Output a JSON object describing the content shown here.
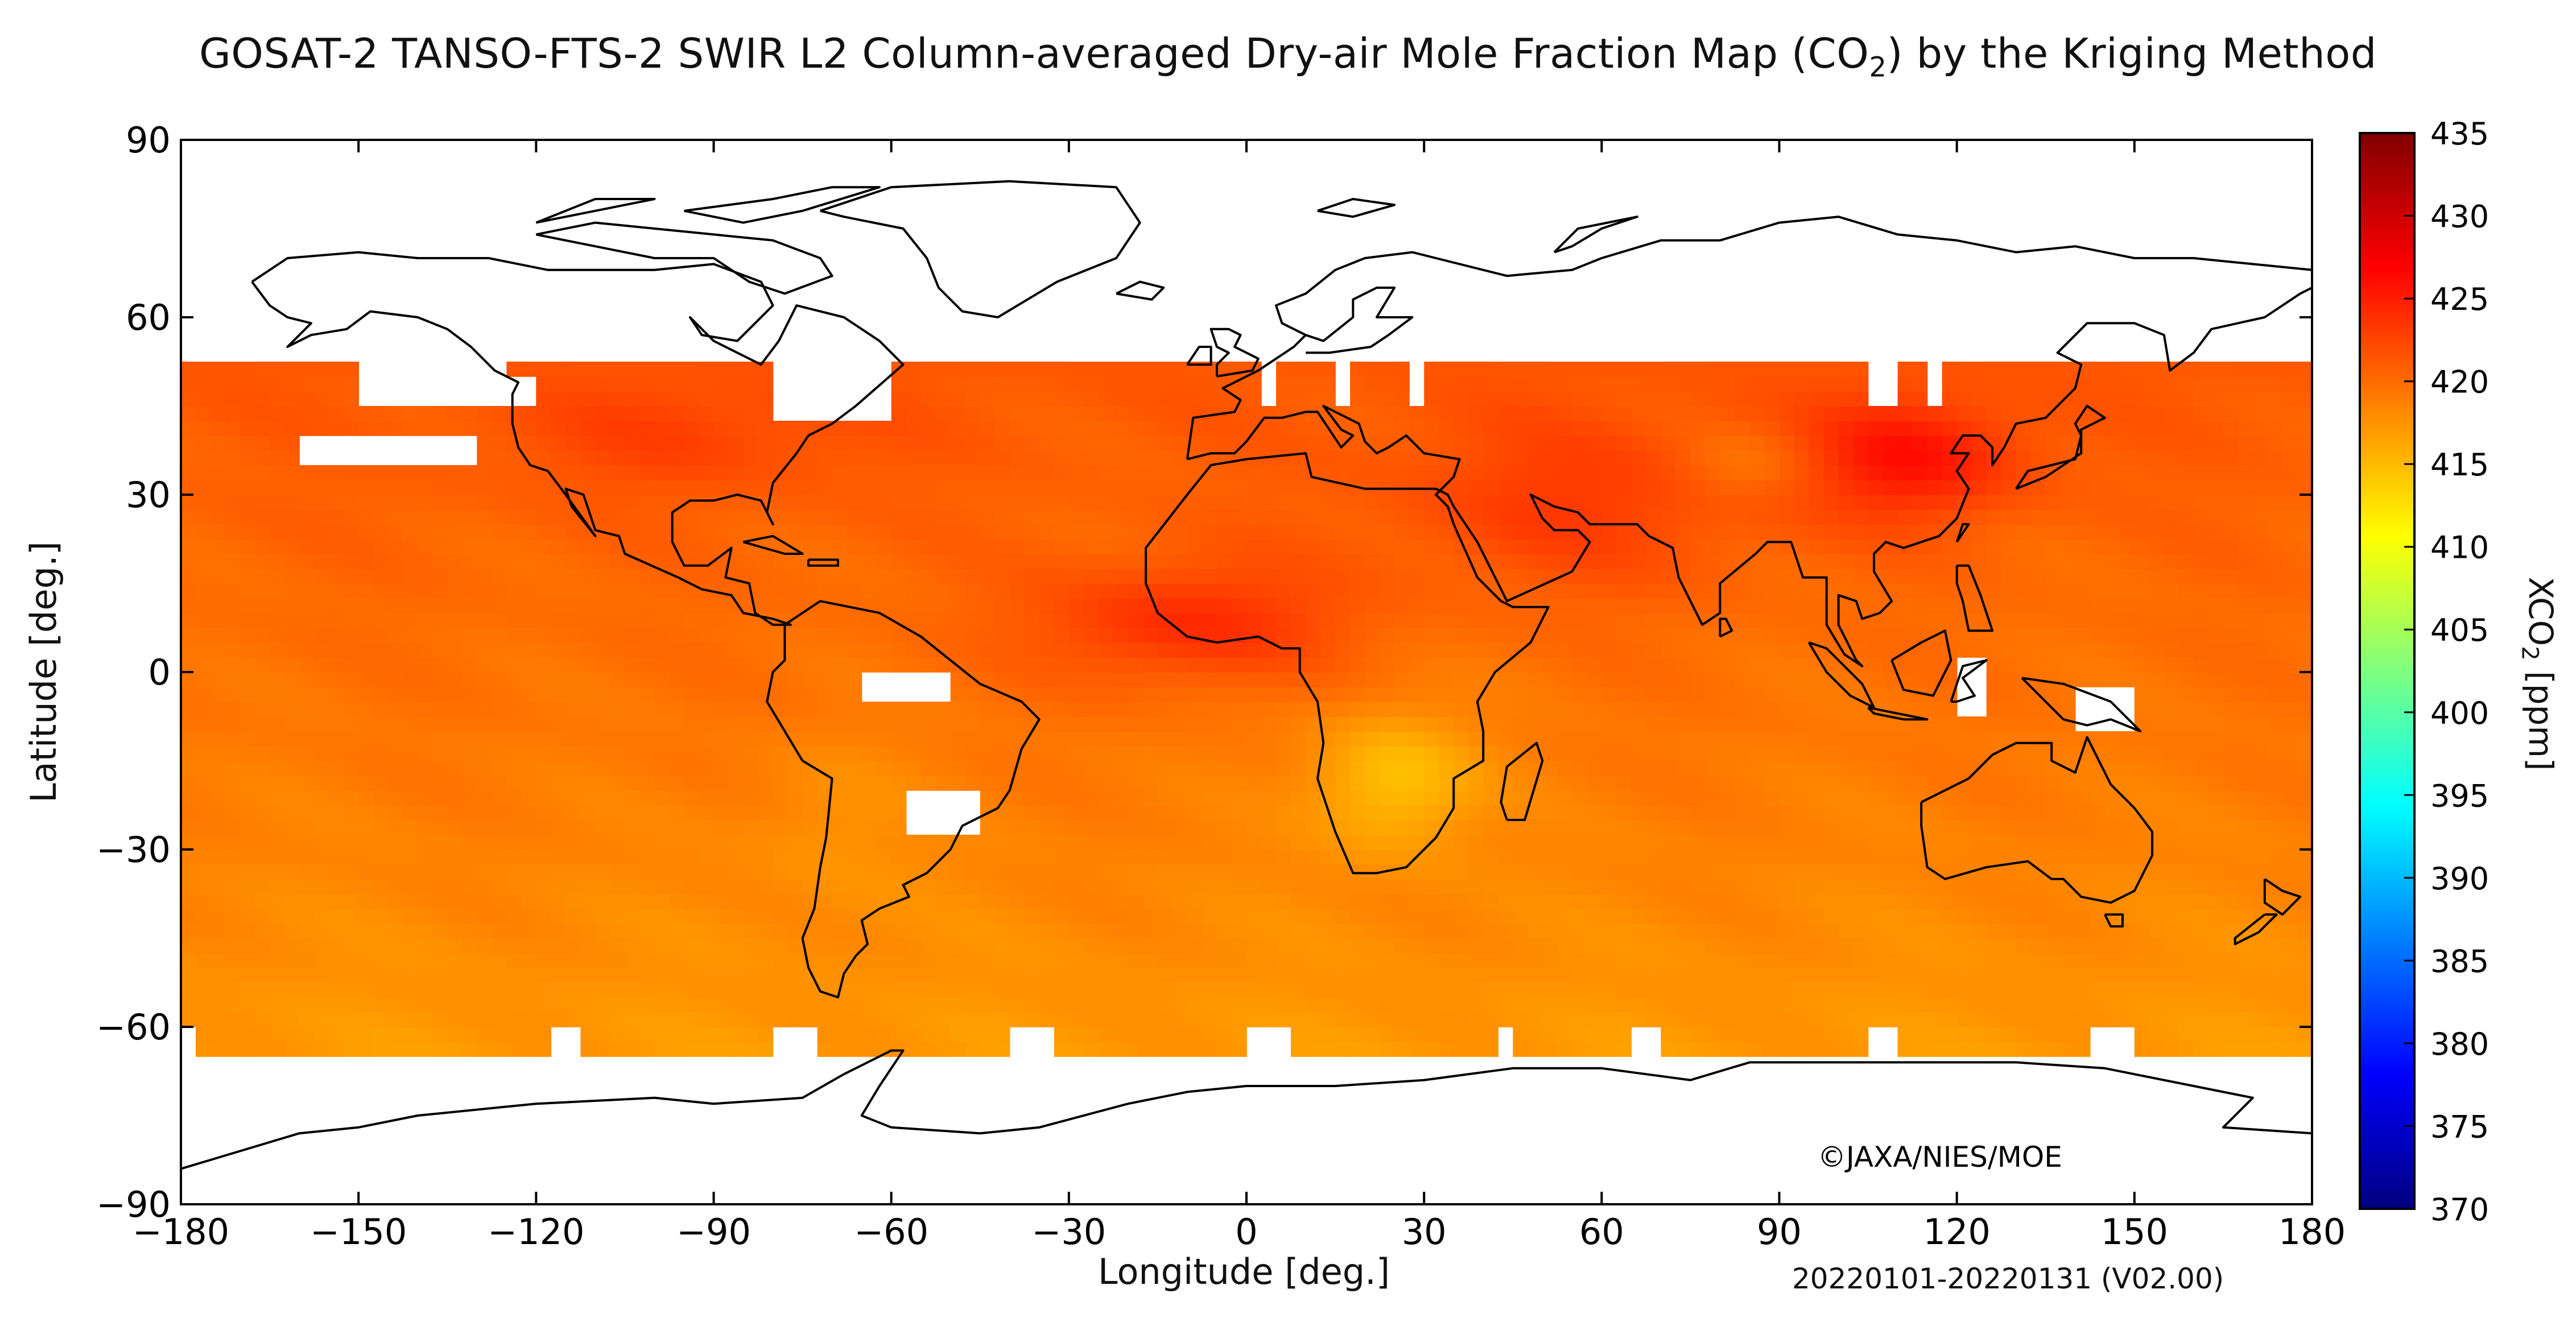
{
  "title": {
    "prefix": "GOSAT-2 TANSO-FTS-2 SWIR L2 Column-averaged Dry-air Mole Fraction Map (CO",
    "subscript": "2",
    "suffix": ") by the Kriging Method"
  },
  "map": {
    "type": "heatmap",
    "projection": "equirectangular",
    "x_axis": {
      "label": "Longitude [deg.]",
      "range": [
        -180,
        180
      ],
      "ticks": [
        "−180",
        "−150",
        "−120",
        "−90",
        "−60",
        "−30",
        "0",
        "30",
        "60",
        "90",
        "120",
        "150",
        "180"
      ]
    },
    "y_axis": {
      "label": "Latitude [deg.]",
      "range": [
        -90,
        90
      ],
      "ticks": [
        "90",
        "60",
        "30",
        "0",
        "−30",
        "−60",
        "−90"
      ]
    },
    "credit": "©JAXA/NIES/MOE",
    "period": "20220101-20220131 (V02.00)",
    "data_coverage_lat": [
      -65,
      52
    ],
    "field_range_ppm": [
      413,
      427
    ]
  },
  "colorbar": {
    "label_prefix": "XCO",
    "label_sub": "2",
    "label_suffix": " [ppm]",
    "range": [
      370,
      435
    ],
    "ticks": [
      "435",
      "430",
      "425",
      "420",
      "415",
      "410",
      "405",
      "400",
      "395",
      "390",
      "385",
      "380",
      "375",
      "370"
    ],
    "colors": [
      "#00007f",
      "#0000ff",
      "#007fff",
      "#00ffff",
      "#7fff7f",
      "#ffff00",
      "#ff7f00",
      "#ff0000",
      "#7f0000"
    ]
  }
}
